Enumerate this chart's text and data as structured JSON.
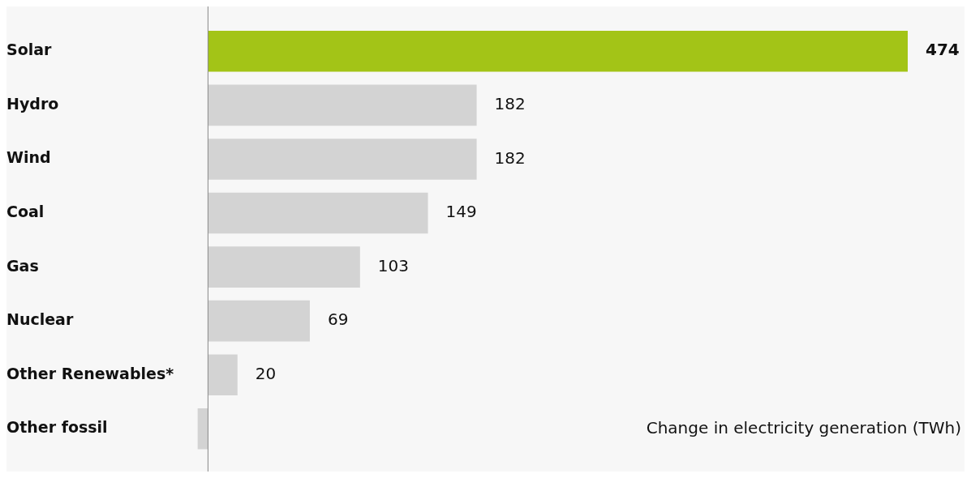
{
  "chart_data": {
    "type": "bar",
    "orientation": "horizontal",
    "xlabel": "Change in electricity generation (TWh)",
    "categories": [
      "Solar",
      "Hydro",
      "Wind",
      "Coal",
      "Gas",
      "Nuclear",
      "Other Renewables*",
      "Other fossil"
    ],
    "values": [
      474,
      182,
      182,
      149,
      103,
      69,
      20,
      -7
    ],
    "colors": [
      "#a3c417",
      "#d3d3d3",
      "#d3d3d3",
      "#d3d3d3",
      "#d3d3d3",
      "#d3d3d3",
      "#d3d3d3",
      "#d3d3d3"
    ],
    "value_labels": [
      "474",
      "182",
      "182",
      "149",
      "103",
      "69",
      "20",
      null
    ],
    "xlim": [
      -10,
      474
    ],
    "tick_labels": "y"
  }
}
